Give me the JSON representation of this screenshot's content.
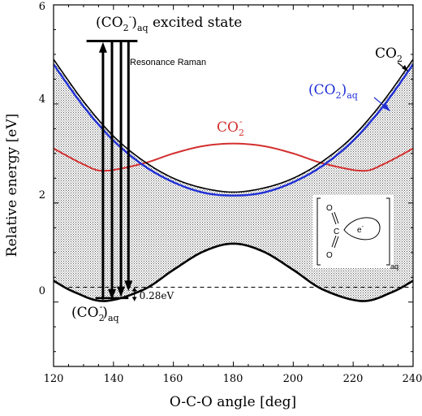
{
  "chart_data": {
    "type": "line",
    "title": "",
    "xlabel": "O-C-O angle [deg]",
    "ylabel": "Relative energy [eV]",
    "xlim": [
      120,
      240
    ],
    "ylim": [
      -1.3,
      6
    ],
    "xticks": [
      120,
      140,
      160,
      180,
      200,
      220,
      240
    ],
    "yticks": [
      0,
      2,
      4,
      6
    ],
    "x_tick_labels": [
      "120",
      "140",
      "160",
      "180",
      "200",
      "220",
      "240"
    ],
    "y_tick_labels": [
      "0",
      "2",
      "4",
      "6"
    ],
    "grid": false,
    "series": [
      {
        "key": "co2",
        "color": "#000000",
        "x": [
          120,
          130,
          140,
          150,
          160,
          170,
          180,
          190,
          200,
          210,
          220,
          230,
          240
        ],
        "y": [
          4.9,
          4.05,
          3.35,
          2.85,
          2.5,
          2.3,
          2.22,
          2.3,
          2.5,
          2.85,
          3.35,
          4.05,
          4.9
        ]
      },
      {
        "key": "co2_aq",
        "color": "#1f2fd6",
        "x": [
          120,
          130,
          140,
          150,
          160,
          170,
          180,
          190,
          200,
          210,
          220,
          230,
          240
        ],
        "y": [
          4.8,
          3.95,
          3.26,
          2.76,
          2.42,
          2.21,
          2.15,
          2.21,
          2.42,
          2.76,
          3.26,
          3.95,
          4.8
        ]
      },
      {
        "key": "co2_minus",
        "color": "#d32f2f",
        "x": [
          120,
          130,
          137,
          150,
          160,
          170,
          180,
          190,
          200,
          210,
          223,
          230,
          240
        ],
        "y": [
          3.1,
          2.78,
          2.65,
          2.8,
          3.0,
          3.15,
          3.2,
          3.15,
          3.0,
          2.8,
          2.65,
          2.78,
          3.1
        ]
      },
      {
        "key": "co2_minus_aq",
        "color": "#000000",
        "x": [
          120,
          127,
          137,
          150,
          160,
          170,
          180,
          190,
          200,
          210,
          223,
          233,
          240
        ],
        "y": [
          0.43,
          0.2,
          0.02,
          0.25,
          0.65,
          1.02,
          1.18,
          1.02,
          0.65,
          0.25,
          0.02,
          0.2,
          0.43
        ]
      }
    ],
    "dashed_level": {
      "y": 0.3,
      "xrange": [
        125,
        240
      ]
    },
    "excited_state_level": {
      "y": 5.27,
      "xrange": [
        131,
        148
      ]
    },
    "ground_level": {
      "y": 0.08,
      "xrange": [
        134,
        145
      ]
    },
    "raman_arrows": {
      "up": [
        {
          "x": 136.5,
          "from": 0.05,
          "to": 5.25
        }
      ],
      "down": [
        {
          "x": 139.5,
          "from": 5.25,
          "to": 0.05
        },
        {
          "x": 142.5,
          "from": 5.25,
          "to": 0.1
        },
        {
          "x": 145.0,
          "from": 5.25,
          "to": 0.22
        }
      ]
    },
    "gap_marker": {
      "x": 147,
      "y_top": 0.3,
      "y_bottom": 0.02,
      "label": "0.28eV"
    },
    "annotations": {
      "excited_state": {
        "base": "(CO",
        "sub1": "2",
        "sup": "-",
        "close": ")",
        "sub2": "aq",
        "suffix": " excited state"
      },
      "resonance_raman": "Resonance Raman",
      "co2_label": {
        "base": "CO",
        "sub": "2"
      },
      "co2_aq_label": {
        "open": "(CO",
        "sub1": "2",
        "close": ")",
        "sub2": "aq"
      },
      "co2_minus_label": {
        "base": "CO",
        "sub": "2",
        "sup": "-"
      },
      "co2_minus_aq_label": {
        "open": "(CO",
        "sub1": "2",
        "sup": "-",
        "close": ")",
        "sub2": "aq"
      }
    },
    "inset": {
      "atom_o_top": "O",
      "atom_c": "C",
      "atom_o_bottom": "O",
      "electron": "e",
      "electron_sup": "-",
      "subscript": "aq"
    },
    "colors": {
      "shading": "#555555",
      "co2_aq": "#1f2fd6",
      "co2_minus": "#d32f2f",
      "ink": "#000000"
    }
  }
}
